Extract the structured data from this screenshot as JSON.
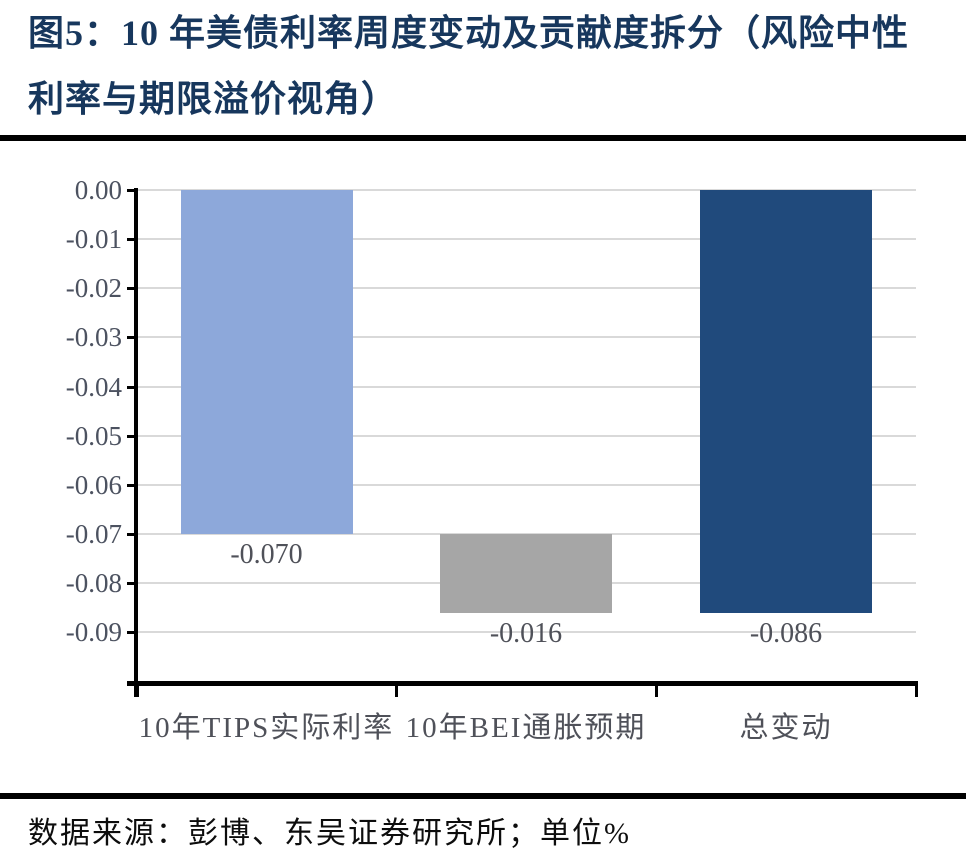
{
  "title": {
    "line1": "图5：10 年美债利率周度变动及贡献度拆分（风险中性",
    "line2": "利率与期限溢价视角）"
  },
  "source": "数据来源：彭博、东吴证券研究所；单位%",
  "colors": {
    "title_text": "#17375D",
    "separator": "#000000",
    "gridline": "#D9D9D9",
    "axis": "#000000",
    "axis_tick_label": "#4C5260",
    "data_label": "#4F5159",
    "bar_light_blue": "#8DA8DA",
    "bar_gray": "#A6A6A6",
    "bar_navy": "#204A7C"
  },
  "chart_data": {
    "type": "bar",
    "subtype": "waterfall",
    "title": "图5：10 年美债利率周度变动及贡献度拆分（风险中性利率与期限溢价视角）",
    "unit": "%",
    "categories": [
      "10年TIPS实际利率",
      "10年BEI通胀预期",
      "总变动"
    ],
    "values": [
      -0.07,
      -0.016,
      -0.086
    ],
    "series": [
      {
        "name": "10年TIPS实际利率",
        "span": [
          0,
          -0.07
        ],
        "label": "-0.070",
        "color": "#8DA8DA"
      },
      {
        "name": "10年BEI通胀预期",
        "span": [
          -0.07,
          -0.086
        ],
        "label": "-0.016",
        "color": "#A6A6A6"
      },
      {
        "name": "总变动",
        "span": [
          0,
          -0.086
        ],
        "label": "-0.086",
        "color": "#204A7C"
      }
    ],
    "y_ticks": [
      "0.00",
      "-0.01",
      "-0.02",
      "-0.03",
      "-0.04",
      "-0.05",
      "-0.06",
      "-0.07",
      "-0.08",
      "-0.09"
    ],
    "ylim": [
      -0.1,
      0.0
    ],
    "grid": "horizontal",
    "legend": "none"
  }
}
